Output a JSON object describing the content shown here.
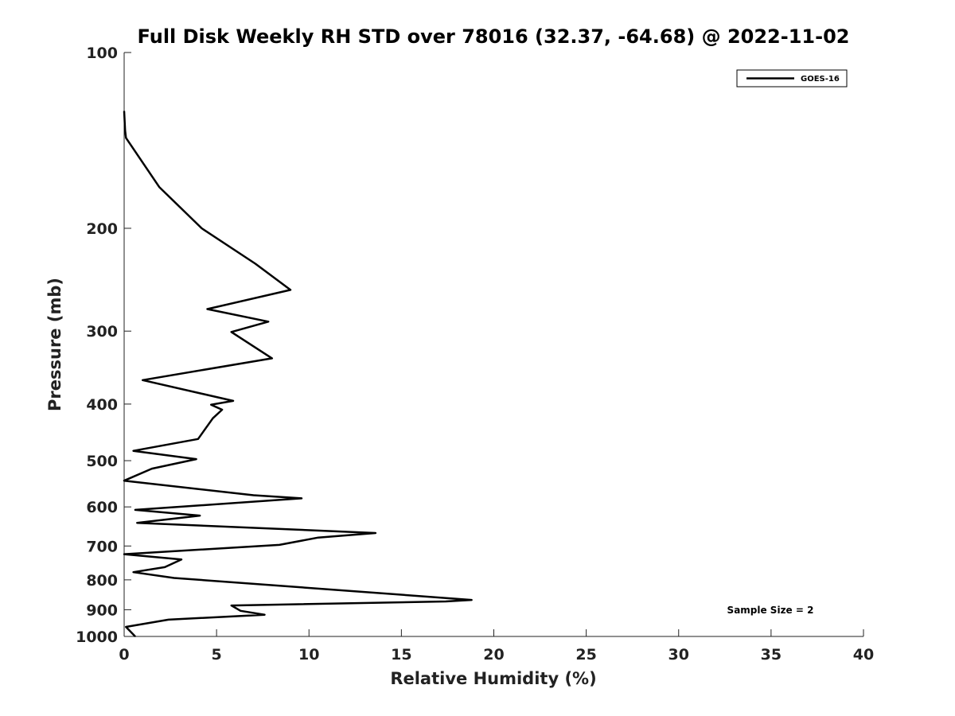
{
  "chart_data": {
    "type": "line",
    "title": "Full Disk Weekly RH STD over 78016 (32.37, -64.68) @ 2022-11-02",
    "xlabel": "Relative Humidity (%)",
    "ylabel": "Pressure (mb)",
    "xlim": [
      0,
      40
    ],
    "ylim": [
      100,
      1000
    ],
    "y_scale": "log",
    "y_reversed": true,
    "grid": false,
    "legend_position": "top-right",
    "x_ticks": [
      "0",
      "5",
      "10",
      "15",
      "20",
      "25",
      "30",
      "35",
      "40"
    ],
    "y_ticks": [
      "100",
      "200",
      "300",
      "400",
      "500",
      "600",
      "700",
      "800",
      "900",
      "1000"
    ],
    "annotation": "Sample Size = 2",
    "series": [
      {
        "name": "GOES-16",
        "color": "#000000",
        "points": [
          [
            0.0,
            126
          ],
          [
            0.05,
            136
          ],
          [
            0.1,
            140
          ],
          [
            1.9,
            170
          ],
          [
            4.2,
            200
          ],
          [
            7.1,
            230
          ],
          [
            9.0,
            255
          ],
          [
            4.5,
            275
          ],
          [
            7.8,
            289
          ],
          [
            5.8,
            301
          ],
          [
            8.0,
            334
          ],
          [
            1.0,
            364
          ],
          [
            5.9,
            395
          ],
          [
            4.7,
            401
          ],
          [
            5.3,
            409
          ],
          [
            4.8,
            423
          ],
          [
            4.0,
            459
          ],
          [
            0.5,
            481
          ],
          [
            3.9,
            497
          ],
          [
            1.5,
            516
          ],
          [
            0.0,
            541
          ],
          [
            7.0,
            573
          ],
          [
            9.6,
            580
          ],
          [
            0.6,
            607
          ],
          [
            4.1,
            621
          ],
          [
            0.7,
            639
          ],
          [
            13.6,
            665
          ],
          [
            10.5,
            677
          ],
          [
            8.4,
            697
          ],
          [
            0.0,
            723
          ],
          [
            3.1,
            738
          ],
          [
            2.2,
            761
          ],
          [
            0.5,
            776
          ],
          [
            2.7,
            794
          ],
          [
            18.8,
            866
          ],
          [
            17.4,
            871
          ],
          [
            5.8,
            885
          ],
          [
            6.3,
            904
          ],
          [
            7.6,
            918
          ],
          [
            2.4,
            936
          ],
          [
            0.1,
            963
          ],
          [
            0.6,
            1000
          ]
        ]
      }
    ]
  }
}
